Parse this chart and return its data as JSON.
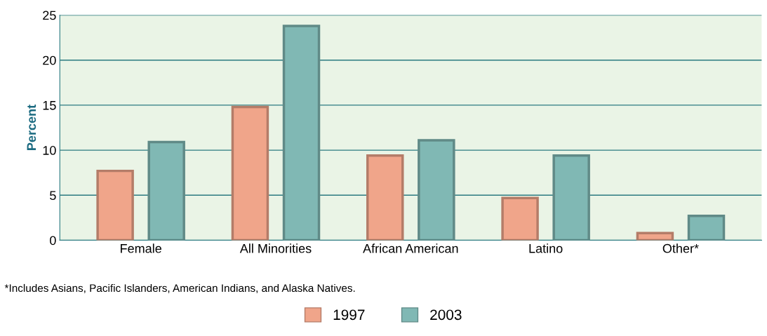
{
  "chart_data": {
    "type": "bar",
    "ylabel": "Percent",
    "categories": [
      "Female",
      "All Minorities",
      "African American",
      "Latino",
      "Other*"
    ],
    "series": [
      {
        "name": "1997",
        "color": "#f0a58a",
        "values": [
          7.7,
          14.8,
          9.4,
          4.7,
          0.8
        ]
      },
      {
        "name": "2003",
        "color": "#80b8b4",
        "values": [
          10.9,
          23.8,
          11.1,
          9.4,
          2.7
        ]
      }
    ],
    "ylim": [
      0,
      25
    ],
    "yticks": [
      0,
      5,
      10,
      15,
      20,
      25
    ],
    "grid": "y",
    "legend": "bottom",
    "annotations": [
      "*Includes Asians, Pacific Islanders, American Indians, and Alaska Natives."
    ]
  }
}
